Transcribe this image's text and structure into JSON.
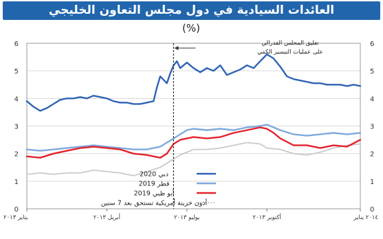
{
  "title": "العائدات السيادية في دول مجلس التعاون الخليجي",
  "colors": {
    "title_bg": "#2166ac",
    "dubai_2020": "#2f63b6",
    "qatar_2019": "#7ea9dc",
    "abudhabi_2019": "#e3222b",
    "us_treasury": "#c8c8c8"
  },
  "chart_data": {
    "type": "line",
    "title": "العائدات السيادية في دول مجلس التعاون الخليجي",
    "unit": "(%)",
    "ylim": [
      0,
      6
    ],
    "yticks": [
      "0",
      "1",
      "2",
      "3",
      "4",
      "5",
      "6"
    ],
    "x_range": [
      0,
      100
    ],
    "xticks": [
      {
        "x": 0,
        "label": "يناير ٢٠١٣"
      },
      {
        "x": 24,
        "label": "أبريل ٢٠١٣"
      },
      {
        "x": 48,
        "label": "يوليو ٢٠١٣"
      },
      {
        "x": 72,
        "label": "أكتوبر ٢٠١٣"
      },
      {
        "x": 100,
        "label": "٢٠١٤ يناير"
      }
    ],
    "grid": true,
    "legend": "bottom-left",
    "annotation": {
      "x": 44,
      "line1": "تعليق المجلس الفدرالي",
      "line2": "على عمليات التيسير الكمي"
    },
    "series": [
      {
        "name": "دبي 2020",
        "color": "#2f63b6",
        "x": [
          0,
          2,
          4,
          6,
          8,
          10,
          12,
          14,
          16,
          18,
          20,
          22,
          24,
          26,
          28,
          30,
          32,
          34,
          36,
          38,
          39,
          40,
          42,
          43,
          44,
          45,
          46,
          48,
          50,
          52,
          54,
          56,
          58,
          60,
          62,
          64,
          66,
          68,
          70,
          72,
          74,
          76,
          78,
          80,
          82,
          84,
          86,
          88,
          90,
          92,
          94,
          96,
          98,
          100
        ],
        "values": [
          3.9,
          3.7,
          3.55,
          3.65,
          3.8,
          3.95,
          4.0,
          4.0,
          4.05,
          4.0,
          4.1,
          4.05,
          4.0,
          3.9,
          3.85,
          3.85,
          3.8,
          3.8,
          3.85,
          3.9,
          4.4,
          4.8,
          4.55,
          4.9,
          5.2,
          5.35,
          5.1,
          5.3,
          5.1,
          4.95,
          5.1,
          5.0,
          5.2,
          4.85,
          4.95,
          5.05,
          5.2,
          5.1,
          5.35,
          5.6,
          5.45,
          5.15,
          4.8,
          4.7,
          4.65,
          4.6,
          4.55,
          4.55,
          4.5,
          4.5,
          4.5,
          4.45,
          4.5,
          4.45
        ]
      },
      {
        "name": "قطر 2019",
        "color": "#7ea9dc",
        "x": [
          0,
          4,
          8,
          12,
          16,
          20,
          24,
          28,
          32,
          36,
          40,
          44,
          46,
          48,
          50,
          54,
          58,
          62,
          66,
          70,
          72,
          74,
          76,
          80,
          84,
          88,
          92,
          96,
          100
        ],
        "values": [
          2.15,
          2.1,
          2.15,
          2.2,
          2.25,
          2.3,
          2.25,
          2.2,
          2.15,
          2.15,
          2.25,
          2.55,
          2.7,
          2.85,
          2.9,
          2.85,
          2.9,
          2.85,
          2.95,
          3.0,
          3.05,
          2.95,
          2.85,
          2.7,
          2.65,
          2.7,
          2.75,
          2.7,
          2.75
        ]
      },
      {
        "name": "أبو ظبي 2019",
        "color": "#e3222b",
        "x": [
          0,
          4,
          8,
          12,
          16,
          20,
          24,
          28,
          32,
          36,
          40,
          42,
          44,
          46,
          48,
          50,
          54,
          58,
          62,
          66,
          70,
          72,
          74,
          76,
          80,
          84,
          88,
          92,
          96,
          100
        ],
        "values": [
          1.9,
          1.85,
          2.0,
          2.1,
          2.2,
          2.25,
          2.2,
          2.15,
          2.0,
          1.95,
          1.85,
          2.0,
          2.35,
          2.5,
          2.55,
          2.6,
          2.55,
          2.6,
          2.75,
          2.85,
          2.95,
          2.9,
          2.75,
          2.55,
          2.3,
          2.3,
          2.2,
          2.3,
          2.25,
          2.5
        ]
      },
      {
        "name": "أذون خزينة أمريكية تستحق بعد 7 سنين",
        "color": "#c8c8c8",
        "dashed": true,
        "x": [
          0,
          4,
          8,
          12,
          16,
          20,
          24,
          28,
          32,
          36,
          40,
          42,
          44,
          46,
          48,
          50,
          54,
          58,
          62,
          66,
          70,
          72,
          76,
          80,
          84,
          88,
          92,
          96,
          100
        ],
        "values": [
          1.25,
          1.3,
          1.25,
          1.3,
          1.3,
          1.4,
          1.35,
          1.3,
          1.2,
          1.35,
          1.5,
          1.65,
          1.8,
          1.95,
          2.05,
          2.15,
          2.15,
          2.2,
          2.3,
          2.4,
          2.35,
          2.2,
          2.15,
          2.0,
          1.95,
          2.05,
          2.2,
          2.3,
          2.35
        ]
      }
    ]
  }
}
